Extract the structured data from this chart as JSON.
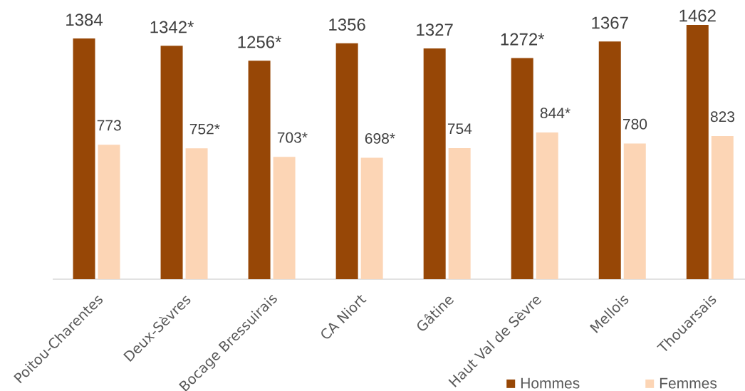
{
  "chart_data": {
    "type": "bar",
    "categories": [
      "Poitou-Charentes",
      "Deux-Sèvres",
      "Bocage Bressuirais",
      "CA Niort",
      "Gâtine",
      "Haut Val de Sèvre",
      "Mellois",
      "Thouarsais"
    ],
    "series": [
      {
        "name": "Hommes",
        "color": "#974706",
        "values": [
          1384,
          1342,
          1256,
          1356,
          1327,
          1272,
          1367,
          1462
        ],
        "value_labels": [
          "1384",
          "1342*",
          "1256*",
          "1356",
          "1327",
          "1272*",
          "1367",
          "1462"
        ]
      },
      {
        "name": "Femmes",
        "color": "#fcd5b5",
        "values": [
          773,
          752,
          703,
          698,
          754,
          844,
          780,
          823
        ],
        "value_labels": [
          "773",
          "752*",
          "703*",
          "698*",
          "754",
          "844*",
          "780",
          "823"
        ]
      }
    ],
    "legend": "bottom right",
    "tick_labels": "x"
  }
}
